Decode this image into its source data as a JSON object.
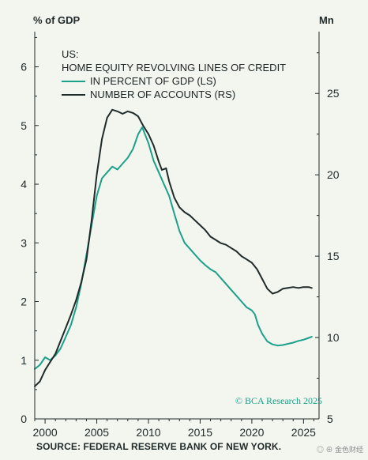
{
  "header": {
    "left_unit": "% of GDP",
    "right_unit": "Mn"
  },
  "legend": {
    "region": "US:",
    "title": "HOME EQUITY REVOLVING LINES OF CREDIT",
    "items": [
      {
        "label": "IN PERCENT OF GDP (LS)",
        "color": "#1ba08a"
      },
      {
        "label": "NUMBER OF ACCOUNTS (RS)",
        "color": "#1f2a2a"
      }
    ]
  },
  "watermark": "© BCA Research 2025",
  "source": "SOURCE: FEDERAL RESERVE BANK OF NEW YORK.",
  "corner_mark": "◎ ⊕ 金色财经",
  "chart_data": {
    "type": "line",
    "x_ticks": [
      2000,
      2005,
      2010,
      2015,
      2020,
      2025
    ],
    "xlim": [
      1999,
      2026.5
    ],
    "y_left": {
      "ticks": [
        0,
        1,
        2,
        3,
        4,
        5,
        6
      ],
      "lim": [
        0,
        6.6
      ]
    },
    "y_right": {
      "ticks": [
        5,
        10,
        15,
        20,
        25
      ],
      "lim": [
        5,
        28.8
      ]
    },
    "series": [
      {
        "name": "IN PERCENT OF GDP (LS)",
        "axis": "left",
        "color": "#1ba08a",
        "points": [
          [
            1999.0,
            0.85
          ],
          [
            1999.5,
            0.92
          ],
          [
            2000.0,
            1.05
          ],
          [
            2000.5,
            1.0
          ],
          [
            2001.0,
            1.08
          ],
          [
            2001.5,
            1.2
          ],
          [
            2002.0,
            1.4
          ],
          [
            2002.5,
            1.6
          ],
          [
            2003.0,
            1.9
          ],
          [
            2003.5,
            2.3
          ],
          [
            2004.0,
            2.8
          ],
          [
            2004.5,
            3.3
          ],
          [
            2005.0,
            3.8
          ],
          [
            2005.5,
            4.1
          ],
          [
            2006.0,
            4.2
          ],
          [
            2006.5,
            4.3
          ],
          [
            2007.0,
            4.25
          ],
          [
            2007.5,
            4.35
          ],
          [
            2008.0,
            4.45
          ],
          [
            2008.5,
            4.6
          ],
          [
            2009.0,
            4.85
          ],
          [
            2009.4,
            4.97
          ],
          [
            2010.0,
            4.7
          ],
          [
            2010.5,
            4.4
          ],
          [
            2011.0,
            4.2
          ],
          [
            2011.5,
            4.0
          ],
          [
            2012.0,
            3.8
          ],
          [
            2012.5,
            3.5
          ],
          [
            2013.0,
            3.2
          ],
          [
            2013.5,
            3.0
          ],
          [
            2014.0,
            2.9
          ],
          [
            2014.5,
            2.8
          ],
          [
            2015.0,
            2.7
          ],
          [
            2015.5,
            2.62
          ],
          [
            2016.0,
            2.55
          ],
          [
            2016.5,
            2.5
          ],
          [
            2017.0,
            2.4
          ],
          [
            2017.5,
            2.3
          ],
          [
            2018.0,
            2.2
          ],
          [
            2018.5,
            2.1
          ],
          [
            2019.0,
            2.0
          ],
          [
            2019.5,
            1.9
          ],
          [
            2020.0,
            1.85
          ],
          [
            2020.3,
            1.78
          ],
          [
            2020.6,
            1.6
          ],
          [
            2021.0,
            1.45
          ],
          [
            2021.5,
            1.32
          ],
          [
            2022.0,
            1.27
          ],
          [
            2022.5,
            1.25
          ],
          [
            2023.0,
            1.26
          ],
          [
            2023.5,
            1.28
          ],
          [
            2024.0,
            1.3
          ],
          [
            2024.5,
            1.33
          ],
          [
            2025.0,
            1.35
          ],
          [
            2025.5,
            1.38
          ],
          [
            2025.8,
            1.4
          ]
        ]
      },
      {
        "name": "NUMBER OF ACCOUNTS (RS)",
        "axis": "right",
        "color": "#1f2a2a",
        "points": [
          [
            1999.0,
            7.0
          ],
          [
            1999.5,
            7.3
          ],
          [
            2000.0,
            8.0
          ],
          [
            2000.5,
            8.5
          ],
          [
            2001.0,
            9.0
          ],
          [
            2001.5,
            9.8
          ],
          [
            2002.0,
            10.6
          ],
          [
            2002.5,
            11.4
          ],
          [
            2003.0,
            12.3
          ],
          [
            2003.5,
            13.4
          ],
          [
            2004.0,
            14.8
          ],
          [
            2004.5,
            17.2
          ],
          [
            2005.0,
            20.0
          ],
          [
            2005.5,
            22.2
          ],
          [
            2006.0,
            23.5
          ],
          [
            2006.5,
            24.0
          ],
          [
            2007.0,
            23.9
          ],
          [
            2007.5,
            23.75
          ],
          [
            2008.0,
            23.9
          ],
          [
            2008.5,
            23.8
          ],
          [
            2009.0,
            23.6
          ],
          [
            2009.5,
            23.0
          ],
          [
            2010.0,
            22.5
          ],
          [
            2010.5,
            21.8
          ],
          [
            2011.0,
            20.8
          ],
          [
            2011.3,
            20.3
          ],
          [
            2011.7,
            20.4
          ],
          [
            2012.0,
            19.6
          ],
          [
            2012.5,
            18.6
          ],
          [
            2013.0,
            18.0
          ],
          [
            2013.5,
            17.7
          ],
          [
            2014.0,
            17.5
          ],
          [
            2014.5,
            17.2
          ],
          [
            2015.0,
            16.9
          ],
          [
            2015.5,
            16.6
          ],
          [
            2016.0,
            16.2
          ],
          [
            2016.5,
            16.0
          ],
          [
            2017.0,
            15.8
          ],
          [
            2017.5,
            15.7
          ],
          [
            2018.0,
            15.5
          ],
          [
            2018.5,
            15.3
          ],
          [
            2019.0,
            15.0
          ],
          [
            2019.5,
            14.8
          ],
          [
            2020.0,
            14.6
          ],
          [
            2020.5,
            14.2
          ],
          [
            2021.0,
            13.6
          ],
          [
            2021.5,
            13.0
          ],
          [
            2022.0,
            12.7
          ],
          [
            2022.5,
            12.8
          ],
          [
            2023.0,
            13.0
          ],
          [
            2023.5,
            13.05
          ],
          [
            2024.0,
            13.1
          ],
          [
            2024.5,
            13.05
          ],
          [
            2025.0,
            13.1
          ],
          [
            2025.5,
            13.1
          ],
          [
            2025.8,
            13.05
          ]
        ]
      }
    ]
  }
}
